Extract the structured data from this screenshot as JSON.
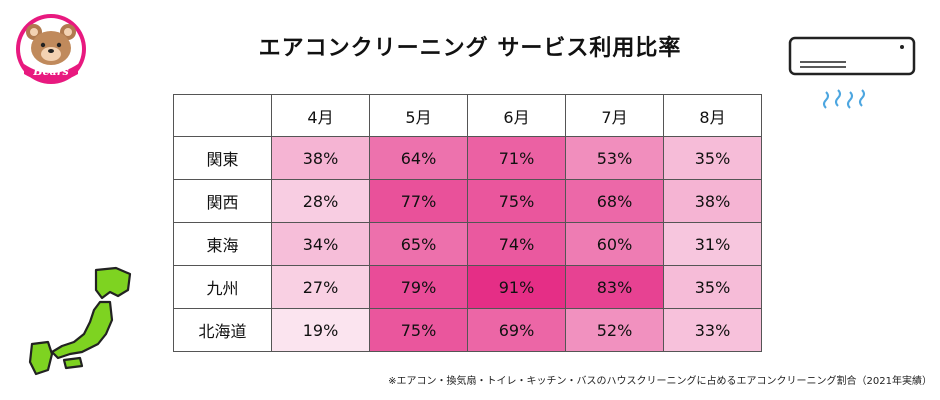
{
  "logo": {
    "text": "Bears",
    "icon": "bear-face-logo-icon"
  },
  "title": "エアコンクリーニング サービス利用比率",
  "chart_data": {
    "type": "table",
    "columns": [
      "4月",
      "5月",
      "6月",
      "7月",
      "8月"
    ],
    "rows": [
      {
        "region": "関東",
        "values": [
          38,
          64,
          71,
          53,
          35
        ],
        "labels": [
          "38%",
          "64%",
          "71%",
          "53%",
          "35%"
        ]
      },
      {
        "region": "関西",
        "values": [
          28,
          77,
          75,
          68,
          38
        ],
        "labels": [
          "28%",
          "77%",
          "75%",
          "68%",
          "38%"
        ]
      },
      {
        "region": "東海",
        "values": [
          34,
          65,
          74,
          60,
          31
        ],
        "labels": [
          "34%",
          "65%",
          "74%",
          "60%",
          "31%"
        ]
      },
      {
        "region": "九州",
        "values": [
          27,
          79,
          91,
          83,
          35
        ],
        "labels": [
          "27%",
          "79%",
          "91%",
          "83%",
          "35%"
        ]
      },
      {
        "region": "北海道",
        "values": [
          19,
          75,
          69,
          52,
          33
        ],
        "labels": [
          "19%",
          "75%",
          "69%",
          "52%",
          "33%"
        ]
      }
    ],
    "color_scale": {
      "low": "#fbe4ef",
      "high": "#e52e86",
      "min": 19,
      "max": 91
    }
  },
  "note": "※エアコン・換気扇・トイレ・キッチン・バスのハウスクリーニングに占めるエアコンクリーニング割合（2021年実績）",
  "decor": {
    "aircon_icon": "air-conditioner-icon",
    "map_icon": "japan-map-icon"
  }
}
